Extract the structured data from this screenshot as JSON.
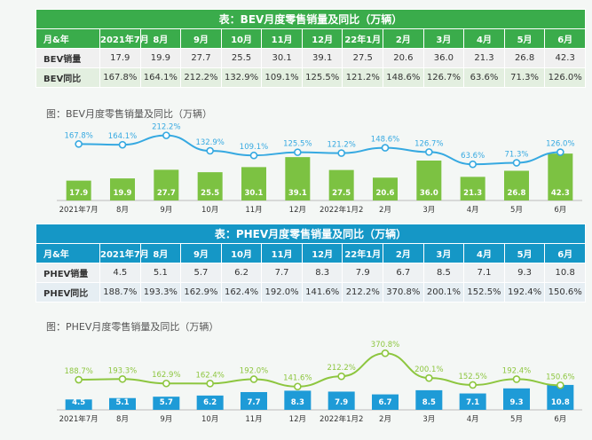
{
  "months": [
    "2021年7月",
    "8月",
    "9月",
    "10月",
    "11月",
    "12月",
    "22年1月",
    "2月",
    "3月",
    "4月",
    "5月",
    "6月"
  ],
  "axis_months": [
    "2021年7月",
    "8月",
    "9月",
    "10月",
    "11月",
    "12月",
    "2022年1月2",
    "2月",
    "3月",
    "4月",
    "5月",
    "6月"
  ],
  "bev_table": {
    "title": "表：BEV月度零售销量及同比（万辆）",
    "header_label": "月&年",
    "sales_label": "BEV销量",
    "yoy_label": "BEV同比",
    "sales": [
      "17.9",
      "19.9",
      "27.7",
      "25.5",
      "30.1",
      "39.1",
      "27.5",
      "20.6",
      "36.0",
      "21.3",
      "26.8",
      "42.3"
    ],
    "yoy": [
      "167.8%",
      "164.1%",
      "212.2%",
      "132.9%",
      "109.1%",
      "125.5%",
      "121.2%",
      "148.6%",
      "126.7%",
      "63.6%",
      "71.3%",
      "126.0%"
    ]
  },
  "phev_table": {
    "title": "表：PHEV月度零售销量及同比（万辆）",
    "header_label": "月&年",
    "sales_label": "PHEV销量",
    "yoy_label": "PHEV同比",
    "sales": [
      "4.5",
      "5.1",
      "5.7",
      "6.2",
      "7.7",
      "8.3",
      "7.9",
      "6.7",
      "8.5",
      "7.1",
      "9.3",
      "10.8"
    ],
    "yoy": [
      "188.7%",
      "193.3%",
      "162.9%",
      "162.4%",
      "192.0%",
      "141.6%",
      "212.2%",
      "370.8%",
      "200.1%",
      "152.5%",
      "192.4%",
      "150.6%"
    ]
  },
  "bev_chart_caption": "图：BEV月度零售销量及同比（万辆）",
  "phev_chart_caption": "图：PHEV月度零售销量及同比（万辆）",
  "colors": {
    "bev_green": "#7cc242",
    "bev_line": "#36a9e1",
    "phev_blue": "#1e9bd7",
    "phev_line": "#8dc63f",
    "header_green": "#3aac4b",
    "header_blue": "#1597c6"
  },
  "chart_data": [
    {
      "type": "bar",
      "categories": [
        "2021年7月",
        "8月",
        "9月",
        "10月",
        "11月",
        "12月",
        "2022年1月2",
        "2月",
        "3月",
        "4月",
        "5月",
        "6月"
      ],
      "series": [
        {
          "values": [
            17.9,
            19.9,
            27.7,
            25.5,
            30.1,
            39.1,
            27.5,
            20.6,
            36.0,
            21.3,
            26.8,
            42.3
          ]
        },
        {
          "type": "line",
          "values": [
            167.8,
            164.1,
            212.2,
            132.9,
            109.1,
            125.5,
            121.2,
            148.6,
            126.7,
            63.6,
            71.3,
            126.0
          ]
        }
      ]
    },
    {
      "type": "bar",
      "categories": [
        "2021年7月",
        "8月",
        "9月",
        "10月",
        "11月",
        "12月",
        "2022年1月2",
        "2月",
        "3月",
        "4月",
        "5月",
        "6月"
      ],
      "series": [
        {
          "values": [
            4.5,
            5.1,
            5.7,
            6.2,
            7.7,
            8.3,
            7.9,
            6.7,
            8.5,
            7.1,
            9.3,
            10.8
          ]
        },
        {
          "type": "line",
          "values": [
            188.7,
            193.3,
            162.9,
            162.4,
            192.0,
            141.6,
            212.2,
            370.8,
            200.1,
            152.5,
            192.4,
            150.6
          ]
        }
      ]
    }
  ]
}
